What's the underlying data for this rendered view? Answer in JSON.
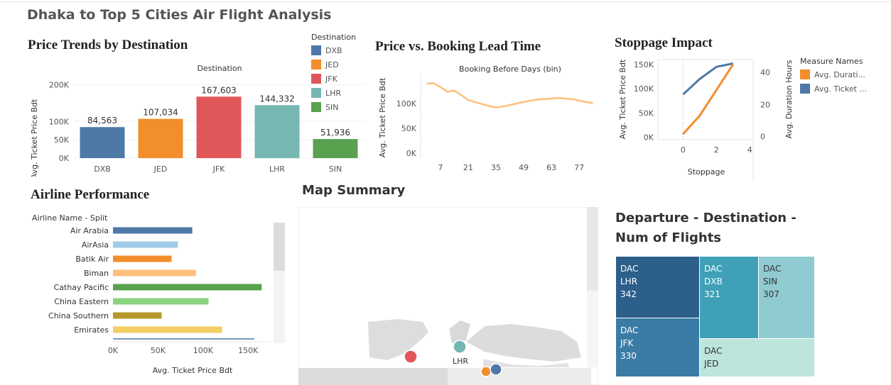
{
  "dashboard_title": "Dhaka to Top 5 Cities Air Flight Analysis",
  "colors": {
    "DXB": "#4e79a7",
    "JED": "#f28e2b",
    "JFK": "#e15759",
    "LHR": "#76b7b2",
    "SIN": "#59a14f",
    "line": "#ffbe7d",
    "ticket": "#4e79a7",
    "duration": "#f28e2b"
  },
  "price_trends": {
    "title": "Price Trends by Destination",
    "header": "Destination",
    "legend_title": "Destination"
  },
  "lead_time": {
    "title": "Price vs. Booking Lead Time",
    "header": "Booking Before Days (bin)"
  },
  "stoppage": {
    "title": "Stoppage Impact",
    "legend_title": "Measure Names",
    "legend_items": [
      "Avg. Durati...",
      "Avg. Ticket ..."
    ]
  },
  "airline": {
    "title": "Airline Performance",
    "header": "Airline Name - Split"
  },
  "map": {
    "title": "Map Summary",
    "label": "LHR"
  },
  "treemap": {
    "title_line1": "Departure - Destination -",
    "title_line2": "Num of Flights",
    "cells": [
      {
        "origin": "DAC",
        "dest": "LHR",
        "value": "342"
      },
      {
        "origin": "DAC",
        "dest": "DXB",
        "value": "321"
      },
      {
        "origin": "DAC",
        "dest": "SIN",
        "value": "307"
      },
      {
        "origin": "DAC",
        "dest": "JFK",
        "value": "330"
      },
      {
        "origin": "DAC",
        "dest": "JED",
        "value": ""
      }
    ]
  },
  "chart_data": [
    {
      "type": "bar",
      "title": "Price Trends by Destination",
      "categories": [
        "DXB",
        "JED",
        "JFK",
        "LHR",
        "SIN"
      ],
      "values": [
        84563,
        107034,
        167603,
        144332,
        51936
      ],
      "value_labels": [
        "84,563",
        "107,034",
        "167,603",
        "144,332",
        "51,936"
      ],
      "ylabel": "Avg. Ticket Price Bdt",
      "ylim": [
        0,
        230000
      ],
      "yticks": [
        0,
        50000,
        100000,
        200000
      ],
      "ytick_labels": [
        "0K",
        "50K",
        "100K",
        "200K"
      ],
      "legend": [
        "DXB",
        "JED",
        "JFK",
        "LHR",
        "SIN"
      ]
    },
    {
      "type": "line",
      "title": "Price vs. Booking Lead Time",
      "x": [
        0,
        3.5,
        7,
        10.5,
        14,
        17.5,
        21,
        24.5,
        28,
        31.5,
        35,
        38.5,
        42,
        45.5,
        49,
        52.5,
        56,
        59.5,
        63,
        66.5,
        70,
        73.5,
        77,
        80.5,
        84
      ],
      "y": [
        140000,
        141000,
        133000,
        124000,
        126000,
        117000,
        107000,
        103000,
        99000,
        95000,
        92000,
        94000,
        97000,
        100000,
        103000,
        106000,
        108000,
        109000,
        110000,
        111000,
        110000,
        109000,
        106000,
        103000,
        101000
      ],
      "xlabel": "Booking Before Days (bin)",
      "ylabel": "Avg. Ticket Price Bdt",
      "xticks": [
        7,
        21,
        35,
        49,
        63,
        77
      ],
      "yticks": [
        0,
        50000,
        100000
      ],
      "ytick_labels": [
        "0K",
        "50K",
        "100K"
      ],
      "xlim": [
        -3,
        87
      ],
      "ylim": [
        -10000,
        160000
      ]
    },
    {
      "type": "line",
      "title": "Stoppage Impact",
      "xlabel": "Stoppage",
      "xticks": [
        0,
        2,
        4
      ],
      "xlim": [
        -1.5,
        4.2
      ],
      "series": [
        {
          "name": "Avg. Ticket Price Bdt",
          "axis": "left",
          "x": [
            0,
            1,
            2,
            3
          ],
          "y": [
            88000,
            120000,
            145000,
            152000
          ]
        },
        {
          "name": "Avg. Duration Hours",
          "axis": "right",
          "x": [
            0,
            1,
            2,
            3
          ],
          "y": [
            1.5,
            13,
            29,
            45
          ]
        }
      ],
      "y_left": {
        "label": "Avg. Ticket Price Bdt",
        "ticks": [
          0,
          50000,
          100000,
          150000
        ],
        "tick_labels": [
          "0K",
          "50K",
          "100K",
          "150K"
        ],
        "lim": [
          -5000,
          160000
        ]
      },
      "y_right": {
        "label": "Avg. Duration Hours",
        "ticks": [
          0,
          20,
          40
        ],
        "tick_labels": [
          "0",
          "20",
          "40"
        ],
        "lim": [
          -2,
          48
        ]
      }
    },
    {
      "type": "bar",
      "orientation": "horizontal",
      "title": "Airline Performance",
      "categories": [
        "Air Arabia",
        "AirAsia",
        "Batik Air",
        "Biman",
        "Cathay Pacific",
        "China Eastern",
        "China Southern",
        "Emirates"
      ],
      "values": [
        88000,
        72000,
        65000,
        92000,
        165000,
        106000,
        54000,
        121000
      ],
      "colors": [
        "#4e79a7",
        "#a0cbe8",
        "#f28e2b",
        "#ffbe7d",
        "#59a14f",
        "#8cd17d",
        "#b6992d",
        "#f1ce63"
      ],
      "xlabel": "Avg. Ticket Price Bdt",
      "xticks": [
        0,
        50000,
        100000,
        150000
      ],
      "xtick_labels": [
        "0K",
        "50K",
        "100K",
        "150K"
      ],
      "xlim": [
        0,
        175000
      ]
    },
    {
      "type": "treemap",
      "title": "Departure - Destination - Num of Flights",
      "categories": [
        "DAC-LHR",
        "DAC-JFK",
        "DAC-DXB",
        "DAC-SIN",
        "DAC-JED"
      ],
      "values": [
        342,
        330,
        321,
        307,
        null
      ]
    }
  ]
}
